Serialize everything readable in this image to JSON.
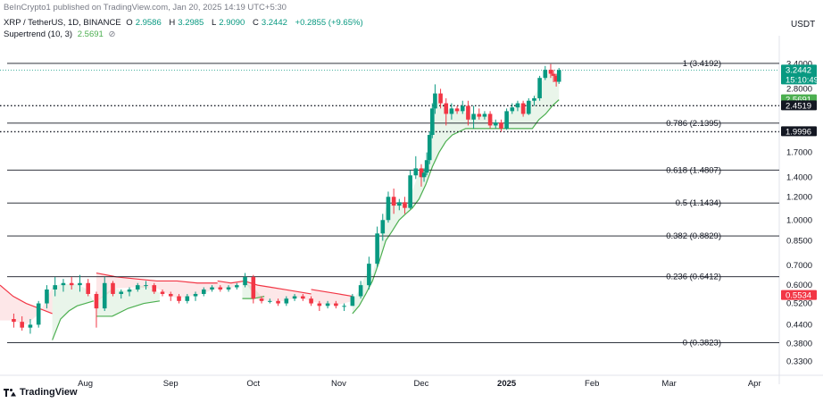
{
  "header": {
    "attribution": "BeInCrypto1 published on TradingView.com, Jan 20, 2025 14:19 UTC+5:30",
    "symbol": "XRP / TetherUS, 1D, BINANCE",
    "ohlc": [
      {
        "label": "O",
        "value": "2.9586"
      },
      {
        "label": "H",
        "value": "3.2985"
      },
      {
        "label": "L",
        "value": "2.9090"
      },
      {
        "label": "C",
        "value": "3.2442"
      }
    ],
    "change": "+0.2855 (+9.65%)",
    "indicator_name": "Supertrend (10, 3)",
    "indicator_value": "2.5691",
    "indicator_icon": "hide-eye-icon"
  },
  "currency": "USDT",
  "brand": "TradingView",
  "colors": {
    "up": "#089981",
    "down": "#f23645",
    "supertrend_up": "#4caf50",
    "supertrend_down": "#f23645"
  },
  "chart_data": {
    "type": "candlestick",
    "y_scale": "log",
    "ylim": [
      0.3,
      4.1
    ],
    "price_ticks": [
      "3.4000",
      "2.8000",
      "1.7000",
      "1.4000",
      "1.2000",
      "1.0000",
      "0.8500",
      "0.7000",
      "0.6000",
      "0.5200",
      "0.4400",
      "0.3800",
      "0.3300"
    ],
    "time_labels": [
      {
        "label": "Aug",
        "date": "2024-08-01"
      },
      {
        "label": "Sep",
        "date": "2024-09-01"
      },
      {
        "label": "Oct",
        "date": "2024-10-01"
      },
      {
        "label": "Nov",
        "date": "2024-11-01"
      },
      {
        "label": "Dec",
        "date": "2024-12-01"
      },
      {
        "label": "2025",
        "date": "2025-01-01",
        "bold": true
      },
      {
        "label": "Feb",
        "date": "2025-02-01"
      },
      {
        "label": "Mar",
        "date": "2025-03-01"
      },
      {
        "label": "Apr",
        "date": "2025-04-01"
      }
    ],
    "fib_levels": [
      {
        "label": "1 (3.4192)",
        "value": 3.4192
      },
      {
        "label": "0.786 (2.1395)",
        "value": 2.1395
      },
      {
        "label": "0.618 (1.4807)",
        "value": 1.4807
      },
      {
        "label": "0.5 (1.1434)",
        "value": 1.1434
      },
      {
        "label": "0.382 (0.8829)",
        "value": 0.8829
      },
      {
        "label": "0.236 (0.6412)",
        "value": 0.6412
      },
      {
        "label": "0 (0.3823)",
        "value": 0.3823
      }
    ],
    "support_lines": [
      2.4519,
      1.9996
    ],
    "price_badges": [
      {
        "value": 3.2442,
        "label": "3.2442",
        "sub": "15:10:49",
        "kind": "last"
      },
      {
        "value": 2.5691,
        "label": "2.5691",
        "kind": "supertrend"
      },
      {
        "value": 2.4519,
        "label": "2.4519",
        "kind": "line"
      },
      {
        "value": 1.9996,
        "label": "1.9996",
        "kind": "line"
      },
      {
        "value": 0.5534,
        "label": "0.5534",
        "kind": "down"
      }
    ],
    "candles": [
      {
        "date": "2024-07-06",
        "o": 0.46,
        "h": 0.48,
        "l": 0.43,
        "c": 0.45
      },
      {
        "date": "2024-07-09",
        "o": 0.45,
        "h": 0.47,
        "l": 0.42,
        "c": 0.43
      },
      {
        "date": "2024-07-12",
        "o": 0.43,
        "h": 0.46,
        "l": 0.41,
        "c": 0.44
      },
      {
        "date": "2024-07-15",
        "o": 0.44,
        "h": 0.53,
        "l": 0.43,
        "c": 0.52
      },
      {
        "date": "2024-07-18",
        "o": 0.52,
        "h": 0.6,
        "l": 0.5,
        "c": 0.58
      },
      {
        "date": "2024-07-21",
        "o": 0.58,
        "h": 0.64,
        "l": 0.55,
        "c": 0.6
      },
      {
        "date": "2024-07-24",
        "o": 0.6,
        "h": 0.63,
        "l": 0.57,
        "c": 0.61
      },
      {
        "date": "2024-07-27",
        "o": 0.61,
        "h": 0.64,
        "l": 0.58,
        "c": 0.6
      },
      {
        "date": "2024-07-30",
        "o": 0.6,
        "h": 0.65,
        "l": 0.57,
        "c": 0.61
      },
      {
        "date": "2024-08-02",
        "o": 0.61,
        "h": 0.63,
        "l": 0.55,
        "c": 0.56
      },
      {
        "date": "2024-08-05",
        "o": 0.56,
        "h": 0.57,
        "l": 0.43,
        "c": 0.5
      },
      {
        "date": "2024-08-08",
        "o": 0.5,
        "h": 0.64,
        "l": 0.49,
        "c": 0.61
      },
      {
        "date": "2024-08-11",
        "o": 0.61,
        "h": 0.62,
        "l": 0.55,
        "c": 0.56
      },
      {
        "date": "2024-08-14",
        "o": 0.56,
        "h": 0.58,
        "l": 0.54,
        "c": 0.57
      },
      {
        "date": "2024-08-17",
        "o": 0.57,
        "h": 0.59,
        "l": 0.55,
        "c": 0.58
      },
      {
        "date": "2024-08-20",
        "o": 0.58,
        "h": 0.61,
        "l": 0.57,
        "c": 0.6
      },
      {
        "date": "2024-08-23",
        "o": 0.6,
        "h": 0.62,
        "l": 0.58,
        "c": 0.6
      },
      {
        "date": "2024-08-26",
        "o": 0.6,
        "h": 0.61,
        "l": 0.56,
        "c": 0.57
      },
      {
        "date": "2024-08-29",
        "o": 0.57,
        "h": 0.58,
        "l": 0.55,
        "c": 0.56
      },
      {
        "date": "2024-09-01",
        "o": 0.56,
        "h": 0.57,
        "l": 0.53,
        "c": 0.55
      },
      {
        "date": "2024-09-04",
        "o": 0.55,
        "h": 0.56,
        "l": 0.52,
        "c": 0.53
      },
      {
        "date": "2024-09-07",
        "o": 0.53,
        "h": 0.56,
        "l": 0.52,
        "c": 0.55
      },
      {
        "date": "2024-09-10",
        "o": 0.55,
        "h": 0.57,
        "l": 0.53,
        "c": 0.56
      },
      {
        "date": "2024-09-13",
        "o": 0.56,
        "h": 0.59,
        "l": 0.55,
        "c": 0.58
      },
      {
        "date": "2024-09-16",
        "o": 0.58,
        "h": 0.6,
        "l": 0.57,
        "c": 0.59
      },
      {
        "date": "2024-09-19",
        "o": 0.59,
        "h": 0.6,
        "l": 0.57,
        "c": 0.58
      },
      {
        "date": "2024-09-22",
        "o": 0.58,
        "h": 0.6,
        "l": 0.57,
        "c": 0.59
      },
      {
        "date": "2024-09-25",
        "o": 0.59,
        "h": 0.61,
        "l": 0.58,
        "c": 0.6
      },
      {
        "date": "2024-09-28",
        "o": 0.6,
        "h": 0.66,
        "l": 0.59,
        "c": 0.64
      },
      {
        "date": "2024-10-01",
        "o": 0.64,
        "h": 0.65,
        "l": 0.52,
        "c": 0.54
      },
      {
        "date": "2024-10-04",
        "o": 0.54,
        "h": 0.55,
        "l": 0.52,
        "c": 0.53
      },
      {
        "date": "2024-10-07",
        "o": 0.53,
        "h": 0.54,
        "l": 0.52,
        "c": 0.53
      },
      {
        "date": "2024-10-10",
        "o": 0.53,
        "h": 0.54,
        "l": 0.51,
        "c": 0.52
      },
      {
        "date": "2024-10-13",
        "o": 0.52,
        "h": 0.55,
        "l": 0.51,
        "c": 0.54
      },
      {
        "date": "2024-10-16",
        "o": 0.54,
        "h": 0.56,
        "l": 0.53,
        "c": 0.55
      },
      {
        "date": "2024-10-19",
        "o": 0.55,
        "h": 0.56,
        "l": 0.53,
        "c": 0.54
      },
      {
        "date": "2024-10-22",
        "o": 0.54,
        "h": 0.55,
        "l": 0.51,
        "c": 0.52
      },
      {
        "date": "2024-10-25",
        "o": 0.52,
        "h": 0.53,
        "l": 0.49,
        "c": 0.51
      },
      {
        "date": "2024-10-28",
        "o": 0.51,
        "h": 0.53,
        "l": 0.5,
        "c": 0.52
      },
      {
        "date": "2024-10-31",
        "o": 0.52,
        "h": 0.53,
        "l": 0.5,
        "c": 0.51
      },
      {
        "date": "2024-11-03",
        "o": 0.51,
        "h": 0.52,
        "l": 0.49,
        "c": 0.51
      },
      {
        "date": "2024-11-06",
        "o": 0.51,
        "h": 0.56,
        "l": 0.51,
        "c": 0.55
      },
      {
        "date": "2024-11-09",
        "o": 0.55,
        "h": 0.62,
        "l": 0.54,
        "c": 0.6
      },
      {
        "date": "2024-11-12",
        "o": 0.6,
        "h": 0.75,
        "l": 0.58,
        "c": 0.71
      },
      {
        "date": "2024-11-15",
        "o": 0.71,
        "h": 0.95,
        "l": 0.69,
        "c": 0.9
      },
      {
        "date": "2024-11-17",
        "o": 0.9,
        "h": 1.05,
        "l": 0.85,
        "c": 1.0
      },
      {
        "date": "2024-11-19",
        "o": 1.0,
        "h": 1.25,
        "l": 0.98,
        "c": 1.2
      },
      {
        "date": "2024-11-21",
        "o": 1.2,
        "h": 1.28,
        "l": 1.05,
        "c": 1.12
      },
      {
        "date": "2024-11-23",
        "o": 1.12,
        "h": 1.18,
        "l": 1.08,
        "c": 1.15
      },
      {
        "date": "2024-11-25",
        "o": 1.15,
        "h": 1.2,
        "l": 1.05,
        "c": 1.1
      },
      {
        "date": "2024-11-27",
        "o": 1.1,
        "h": 1.48,
        "l": 1.09,
        "c": 1.42
      },
      {
        "date": "2024-11-29",
        "o": 1.42,
        "h": 1.65,
        "l": 1.38,
        "c": 1.5
      },
      {
        "date": "2024-12-01",
        "o": 1.5,
        "h": 1.55,
        "l": 1.3,
        "c": 1.4
      },
      {
        "date": "2024-12-02",
        "o": 1.4,
        "h": 1.5,
        "l": 1.35,
        "c": 1.45
      },
      {
        "date": "2024-12-03",
        "o": 1.45,
        "h": 1.7,
        "l": 1.42,
        "c": 1.6
      },
      {
        "date": "2024-12-04",
        "o": 1.6,
        "h": 2.0,
        "l": 1.55,
        "c": 1.95
      },
      {
        "date": "2024-12-05",
        "o": 1.95,
        "h": 2.5,
        "l": 1.9,
        "c": 2.4
      },
      {
        "date": "2024-12-06",
        "o": 2.4,
        "h": 2.9,
        "l": 2.3,
        "c": 2.7
      },
      {
        "date": "2024-12-08",
        "o": 2.7,
        "h": 2.8,
        "l": 2.4,
        "c": 2.5
      },
      {
        "date": "2024-12-10",
        "o": 2.5,
        "h": 2.6,
        "l": 2.1,
        "c": 2.3
      },
      {
        "date": "2024-12-12",
        "o": 2.3,
        "h": 2.5,
        "l": 2.2,
        "c": 2.4
      },
      {
        "date": "2024-12-14",
        "o": 2.4,
        "h": 2.45,
        "l": 2.3,
        "c": 2.35
      },
      {
        "date": "2024-12-16",
        "o": 2.35,
        "h": 2.55,
        "l": 2.3,
        "c": 2.45
      },
      {
        "date": "2024-12-18",
        "o": 2.45,
        "h": 2.55,
        "l": 2.1,
        "c": 2.2
      },
      {
        "date": "2024-12-20",
        "o": 2.2,
        "h": 2.45,
        "l": 2.05,
        "c": 2.3
      },
      {
        "date": "2024-12-22",
        "o": 2.3,
        "h": 2.4,
        "l": 2.2,
        "c": 2.25
      },
      {
        "date": "2024-12-24",
        "o": 2.25,
        "h": 2.35,
        "l": 2.2,
        "c": 2.3
      },
      {
        "date": "2024-12-26",
        "o": 2.3,
        "h": 2.35,
        "l": 2.05,
        "c": 2.1
      },
      {
        "date": "2024-12-28",
        "o": 2.1,
        "h": 2.2,
        "l": 2.05,
        "c": 2.15
      },
      {
        "date": "2024-12-30",
        "o": 2.15,
        "h": 2.2,
        "l": 2.0,
        "c": 2.05
      },
      {
        "date": "2025-01-01",
        "o": 2.05,
        "h": 2.4,
        "l": 2.03,
        "c": 2.35
      },
      {
        "date": "2025-01-03",
        "o": 2.35,
        "h": 2.5,
        "l": 2.3,
        "c": 2.42
      },
      {
        "date": "2025-01-05",
        "o": 2.42,
        "h": 2.55,
        "l": 2.35,
        "c": 2.5
      },
      {
        "date": "2025-01-07",
        "o": 2.5,
        "h": 2.55,
        "l": 2.25,
        "c": 2.3
      },
      {
        "date": "2025-01-09",
        "o": 2.3,
        "h": 2.6,
        "l": 2.28,
        "c": 2.55
      },
      {
        "date": "2025-01-11",
        "o": 2.55,
        "h": 2.65,
        "l": 2.45,
        "c": 2.6
      },
      {
        "date": "2025-01-13",
        "o": 2.6,
        "h": 3.1,
        "l": 2.55,
        "c": 3.05
      },
      {
        "date": "2025-01-15",
        "o": 3.05,
        "h": 3.35,
        "l": 3.0,
        "c": 3.25
      },
      {
        "date": "2025-01-17",
        "o": 3.25,
        "h": 3.4,
        "l": 3.05,
        "c": 3.15
      },
      {
        "date": "2025-01-18",
        "o": 3.15,
        "h": 3.25,
        "l": 2.95,
        "c": 3.1
      },
      {
        "date": "2025-01-19",
        "o": 3.1,
        "h": 3.15,
        "l": 2.85,
        "c": 2.96
      },
      {
        "date": "2025-01-20",
        "o": 2.9586,
        "h": 3.2985,
        "l": 2.909,
        "c": 3.2442
      }
    ],
    "supertrend": [
      {
        "from": "2024-07-01",
        "to": "2024-07-20",
        "dir": "down",
        "values": [
          0.6,
          0.55,
          0.52,
          0.5,
          0.48
        ]
      },
      {
        "from": "2024-07-20",
        "to": "2024-08-04",
        "dir": "up",
        "values": [
          0.39,
          0.46,
          0.49,
          0.51,
          0.52,
          0.53
        ]
      },
      {
        "from": "2024-08-05",
        "to": "2024-09-18",
        "dir": "down",
        "values": [
          0.66,
          0.64,
          0.63,
          0.62,
          0.62,
          0.61,
          0.61
        ]
      },
      {
        "from": "2024-08-05",
        "to": "2024-08-28",
        "dir": "up",
        "values": [
          0.47,
          0.47,
          0.5,
          0.52,
          0.53
        ]
      },
      {
        "from": "2024-09-18",
        "to": "2024-10-22",
        "dir": "down",
        "values": [
          0.62,
          0.61,
          0.62,
          0.6,
          0.59,
          0.58,
          0.57,
          0.56
        ]
      },
      {
        "from": "2024-09-27",
        "to": "2024-10-05",
        "dir": "up",
        "values": [
          0.54,
          0.54,
          0.55
        ]
      },
      {
        "from": "2024-10-22",
        "to": "2024-11-06",
        "dir": "down",
        "values": [
          0.58,
          0.57,
          0.56,
          0.55
        ]
      },
      {
        "from": "2024-11-06",
        "to": "2025-01-20",
        "dir": "up",
        "values": [
          0.48,
          0.51,
          0.56,
          0.62,
          0.72,
          0.85,
          0.92,
          1.0,
          1.05,
          1.1,
          1.18,
          1.32,
          1.52,
          1.7,
          1.85,
          1.95,
          2.0,
          2.05,
          2.05,
          2.05,
          2.05,
          2.05,
          2.05,
          2.05,
          2.05,
          2.05,
          2.05,
          2.05,
          2.2,
          2.3,
          2.45,
          2.57
        ]
      }
    ]
  }
}
